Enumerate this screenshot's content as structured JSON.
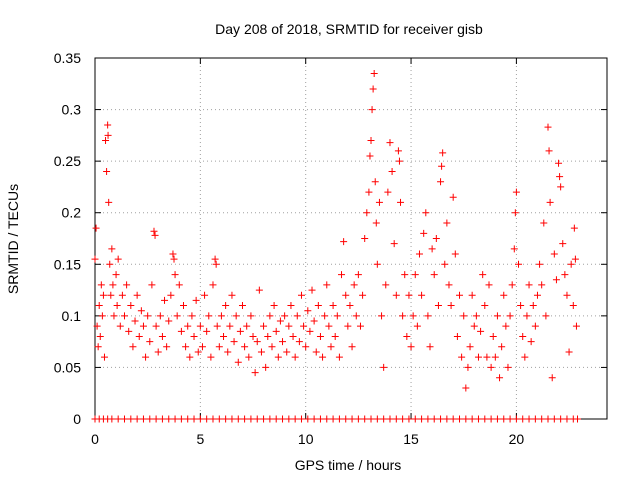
{
  "chart_data": {
    "type": "scatter",
    "title": "Day 208 of 2018, SRMTID for receiver gisb",
    "xlabel": "GPS time / hours",
    "ylabel": "SRMTID / TECUs",
    "xlim": [
      0,
      24.3
    ],
    "ylim": [
      0,
      0.35
    ],
    "xticks": [
      0,
      5,
      10,
      15,
      20
    ],
    "xtick_labels": [
      "0",
      "5",
      "10",
      "15",
      "20"
    ],
    "yticks": [
      0,
      0.05,
      0.1,
      0.15,
      0.2,
      0.25,
      0.3,
      0.35
    ],
    "ytick_labels": [
      "0",
      "0.05",
      "0.1",
      "0.15",
      "0.2",
      "0.25",
      "0.3",
      "0.35"
    ],
    "grid": true,
    "marker": "+",
    "series": [
      {
        "name": "SRMTID",
        "color": "#ff0000",
        "points": [
          [
            0.0,
            0.155
          ],
          [
            0.05,
            0.185
          ],
          [
            0.1,
            0.09
          ],
          [
            0.15,
            0.07
          ],
          [
            0.2,
            0.11
          ],
          [
            0.25,
            0.08
          ],
          [
            0.3,
            0.13
          ],
          [
            0.35,
            0.1
          ],
          [
            0.4,
            0.12
          ],
          [
            0.45,
            0.06
          ],
          [
            0.5,
            0.27
          ],
          [
            0.55,
            0.24
          ],
          [
            0.6,
            0.285
          ],
          [
            0.62,
            0.275
          ],
          [
            0.65,
            0.21
          ],
          [
            0.7,
            0.15
          ],
          [
            0.75,
            0.12
          ],
          [
            0.8,
            0.165
          ],
          [
            0.85,
            0.13
          ],
          [
            0.9,
            0.1
          ],
          [
            1.0,
            0.14
          ],
          [
            1.05,
            0.11
          ],
          [
            1.1,
            0.155
          ],
          [
            1.2,
            0.09
          ],
          [
            1.3,
            0.12
          ],
          [
            1.4,
            0.1
          ],
          [
            1.5,
            0.13
          ],
          [
            1.6,
            0.085
          ],
          [
            1.7,
            0.11
          ],
          [
            1.8,
            0.07
          ],
          [
            1.9,
            0.095
          ],
          [
            2.0,
            0.12
          ],
          [
            2.1,
            0.08
          ],
          [
            2.2,
            0.105
          ],
          [
            2.3,
            0.09
          ],
          [
            2.4,
            0.06
          ],
          [
            2.5,
            0.1
          ],
          [
            2.6,
            0.075
          ],
          [
            2.7,
            0.13
          ],
          [
            2.8,
            0.182
          ],
          [
            2.85,
            0.178
          ],
          [
            2.9,
            0.09
          ],
          [
            3.0,
            0.065
          ],
          [
            3.1,
            0.1
          ],
          [
            3.2,
            0.08
          ],
          [
            3.3,
            0.115
          ],
          [
            3.4,
            0.07
          ],
          [
            3.5,
            0.095
          ],
          [
            3.6,
            0.12
          ],
          [
            3.7,
            0.16
          ],
          [
            3.75,
            0.155
          ],
          [
            3.8,
            0.14
          ],
          [
            3.9,
            0.1
          ],
          [
            4.0,
            0.13
          ],
          [
            4.1,
            0.085
          ],
          [
            4.2,
            0.11
          ],
          [
            4.3,
            0.07
          ],
          [
            4.4,
            0.09
          ],
          [
            4.5,
            0.06
          ],
          [
            4.6,
            0.1
          ],
          [
            4.7,
            0.08
          ],
          [
            4.8,
            0.115
          ],
          [
            4.9,
            0.065
          ],
          [
            5.0,
            0.09
          ],
          [
            5.1,
            0.07
          ],
          [
            5.2,
            0.12
          ],
          [
            5.3,
            0.085
          ],
          [
            5.4,
            0.1
          ],
          [
            5.5,
            0.06
          ],
          [
            5.6,
            0.13
          ],
          [
            5.7,
            0.155
          ],
          [
            5.75,
            0.15
          ],
          [
            5.8,
            0.09
          ],
          [
            5.9,
            0.07
          ],
          [
            6.0,
            0.1
          ],
          [
            6.1,
            0.08
          ],
          [
            6.2,
            0.11
          ],
          [
            6.3,
            0.065
          ],
          [
            6.4,
            0.09
          ],
          [
            6.5,
            0.12
          ],
          [
            6.6,
            0.075
          ],
          [
            6.7,
            0.1
          ],
          [
            6.8,
            0.055
          ],
          [
            6.9,
            0.085
          ],
          [
            7.0,
            0.11
          ],
          [
            7.1,
            0.07
          ],
          [
            7.2,
            0.09
          ],
          [
            7.3,
            0.06
          ],
          [
            7.4,
            0.1
          ],
          [
            7.5,
            0.08
          ],
          [
            7.6,
            0.045
          ],
          [
            7.7,
            0.075
          ],
          [
            7.8,
            0.125
          ],
          [
            7.9,
            0.065
          ],
          [
            8.0,
            0.09
          ],
          [
            8.1,
            0.05
          ],
          [
            8.2,
            0.08
          ],
          [
            8.3,
            0.1
          ],
          [
            8.4,
            0.07
          ],
          [
            8.5,
            0.11
          ],
          [
            8.6,
            0.085
          ],
          [
            8.7,
            0.06
          ],
          [
            8.8,
            0.095
          ],
          [
            8.9,
            0.075
          ],
          [
            9.0,
            0.1
          ],
          [
            9.1,
            0.065
          ],
          [
            9.2,
            0.09
          ],
          [
            9.3,
            0.11
          ],
          [
            9.4,
            0.08
          ],
          [
            9.5,
            0.06
          ],
          [
            9.6,
            0.1
          ],
          [
            9.7,
            0.075
          ],
          [
            9.8,
            0.12
          ],
          [
            9.9,
            0.09
          ],
          [
            10.0,
            0.07
          ],
          [
            10.1,
            0.105
          ],
          [
            10.2,
            0.085
          ],
          [
            10.3,
            0.125
          ],
          [
            10.4,
            0.095
          ],
          [
            10.5,
            0.065
          ],
          [
            10.6,
            0.11
          ],
          [
            10.7,
            0.08
          ],
          [
            10.8,
            0.06
          ],
          [
            10.9,
            0.1
          ],
          [
            11.0,
            0.13
          ],
          [
            11.1,
            0.09
          ],
          [
            11.2,
            0.07
          ],
          [
            11.3,
            0.11
          ],
          [
            11.4,
            0.08
          ],
          [
            11.5,
            0.1
          ],
          [
            11.6,
            0.06
          ],
          [
            11.7,
            0.14
          ],
          [
            11.8,
            0.172
          ],
          [
            11.9,
            0.12
          ],
          [
            12.0,
            0.09
          ],
          [
            12.1,
            0.11
          ],
          [
            12.2,
            0.07
          ],
          [
            12.3,
            0.13
          ],
          [
            12.4,
            0.1
          ],
          [
            12.5,
            0.14
          ],
          [
            12.6,
            0.09
          ],
          [
            12.7,
            0.12
          ],
          [
            12.8,
            0.175
          ],
          [
            12.9,
            0.2
          ],
          [
            13.0,
            0.22
          ],
          [
            13.05,
            0.255
          ],
          [
            13.1,
            0.27
          ],
          [
            13.15,
            0.3
          ],
          [
            13.2,
            0.32
          ],
          [
            13.25,
            0.335
          ],
          [
            13.3,
            0.23
          ],
          [
            13.35,
            0.19
          ],
          [
            13.4,
            0.15
          ],
          [
            13.5,
            0.21
          ],
          [
            13.6,
            0.1
          ],
          [
            13.7,
            0.05
          ],
          [
            13.8,
            0.13
          ],
          [
            13.9,
            0.22
          ],
          [
            14.0,
            0.268
          ],
          [
            14.1,
            0.24
          ],
          [
            14.2,
            0.17
          ],
          [
            14.3,
            0.12
          ],
          [
            14.4,
            0.26
          ],
          [
            14.45,
            0.25
          ],
          [
            14.5,
            0.21
          ],
          [
            14.6,
            0.1
          ],
          [
            14.7,
            0.14
          ],
          [
            14.8,
            0.08
          ],
          [
            14.9,
            0.12
          ],
          [
            15.0,
            0.07
          ],
          [
            15.1,
            0.1
          ],
          [
            15.2,
            0.14
          ],
          [
            15.3,
            0.09
          ],
          [
            15.4,
            0.16
          ],
          [
            15.5,
            0.12
          ],
          [
            15.6,
            0.18
          ],
          [
            15.7,
            0.2
          ],
          [
            15.8,
            0.1
          ],
          [
            15.9,
            0.07
          ],
          [
            16.0,
            0.165
          ],
          [
            16.1,
            0.14
          ],
          [
            16.2,
            0.175
          ],
          [
            16.3,
            0.11
          ],
          [
            16.4,
            0.23
          ],
          [
            16.45,
            0.245
          ],
          [
            16.5,
            0.258
          ],
          [
            16.6,
            0.15
          ],
          [
            16.7,
            0.19
          ],
          [
            16.8,
            0.13
          ],
          [
            16.9,
            0.11
          ],
          [
            17.0,
            0.215
          ],
          [
            17.1,
            0.16
          ],
          [
            17.2,
            0.08
          ],
          [
            17.3,
            0.12
          ],
          [
            17.4,
            0.06
          ],
          [
            17.5,
            0.1
          ],
          [
            17.6,
            0.03
          ],
          [
            17.7,
            0.05
          ],
          [
            17.8,
            0.07
          ],
          [
            17.9,
            0.12
          ],
          [
            18.0,
            0.09
          ],
          [
            18.1,
            0.1
          ],
          [
            18.2,
            0.06
          ],
          [
            18.3,
            0.085
          ],
          [
            18.4,
            0.14
          ],
          [
            18.5,
            0.11
          ],
          [
            18.6,
            0.06
          ],
          [
            18.7,
            0.13
          ],
          [
            18.8,
            0.05
          ],
          [
            18.9,
            0.08
          ],
          [
            19.0,
            0.06
          ],
          [
            19.1,
            0.1
          ],
          [
            19.2,
            0.04
          ],
          [
            19.3,
            0.07
          ],
          [
            19.4,
            0.12
          ],
          [
            19.5,
            0.09
          ],
          [
            19.6,
            0.05
          ],
          [
            19.7,
            0.1
          ],
          [
            19.8,
            0.13
          ],
          [
            19.9,
            0.165
          ],
          [
            19.95,
            0.2
          ],
          [
            20.0,
            0.22
          ],
          [
            20.1,
            0.15
          ],
          [
            20.2,
            0.11
          ],
          [
            20.3,
            0.08
          ],
          [
            20.4,
            0.06
          ],
          [
            20.5,
            0.1
          ],
          [
            20.6,
            0.13
          ],
          [
            20.7,
            0.075
          ],
          [
            20.8,
            0.11
          ],
          [
            20.9,
            0.09
          ],
          [
            21.0,
            0.12
          ],
          [
            21.1,
            0.15
          ],
          [
            21.2,
            0.13
          ],
          [
            21.3,
            0.19
          ],
          [
            21.4,
            0.1
          ],
          [
            21.5,
            0.283
          ],
          [
            21.55,
            0.26
          ],
          [
            21.6,
            0.21
          ],
          [
            21.7,
            0.04
          ],
          [
            21.8,
            0.16
          ],
          [
            21.9,
            0.135
          ],
          [
            22.0,
            0.248
          ],
          [
            22.05,
            0.235
          ],
          [
            22.1,
            0.225
          ],
          [
            22.2,
            0.17
          ],
          [
            22.3,
            0.14
          ],
          [
            22.4,
            0.12
          ],
          [
            22.5,
            0.065
          ],
          [
            22.6,
            0.15
          ],
          [
            22.7,
            0.11
          ],
          [
            22.75,
            0.185
          ],
          [
            22.8,
            0.155
          ],
          [
            22.85,
            0.09
          ]
        ],
        "zero_points_x": [
          0.0,
          0.2,
          0.4,
          0.6,
          0.8,
          1.1,
          1.4,
          1.7,
          2.0,
          2.3,
          2.6,
          2.9,
          3.2,
          3.5,
          3.8,
          4.1,
          4.4,
          4.7,
          5.0,
          5.3,
          5.6,
          5.9,
          6.2,
          6.5,
          6.8,
          7.1,
          7.4,
          7.7,
          8.0,
          8.3,
          8.6,
          8.9,
          9.2,
          9.5,
          9.8,
          10.1,
          10.4,
          10.7,
          11.0,
          11.3,
          11.6,
          11.9,
          12.2,
          12.5,
          12.8,
          13.1,
          13.4,
          13.7,
          14.0,
          14.3,
          14.6,
          14.9,
          15.2,
          15.5,
          15.8,
          16.1,
          16.4,
          16.7,
          17.0,
          17.3,
          17.6,
          17.9,
          18.2,
          18.5,
          18.8,
          19.1,
          19.4,
          19.7,
          20.0,
          20.3,
          20.6,
          20.9,
          21.2,
          21.5,
          21.8,
          22.1,
          22.4,
          22.7,
          22.9
        ]
      }
    ]
  }
}
